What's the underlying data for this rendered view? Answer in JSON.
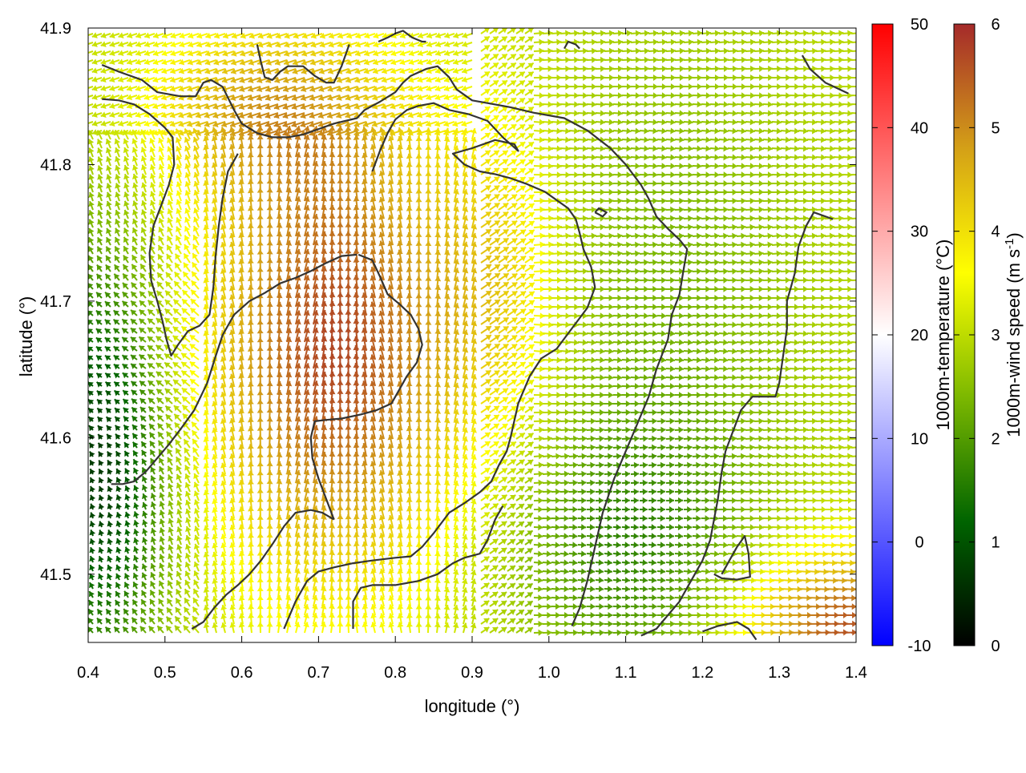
{
  "chart_data": {
    "type": "vector-field",
    "x": {
      "label": "longitude (°)",
      "range": [
        0.4,
        1.4
      ],
      "ticks": [
        "0.4",
        "0.5",
        "0.6",
        "0.7",
        "0.8",
        "0.9",
        "1.0",
        "1.1",
        "1.2",
        "1.3",
        "1.4"
      ]
    },
    "y": {
      "label": "latitude (°)",
      "range": [
        41.45,
        41.9
      ],
      "ticks": [
        "41.5",
        "41.6",
        "41.7",
        "41.8",
        "41.9"
      ]
    },
    "colorbars": [
      {
        "label": "1000m-temperature (°C)",
        "range": [
          -10,
          50
        ],
        "ticks": [
          "-10",
          "0",
          "10",
          "20",
          "30",
          "40",
          "50"
        ],
        "stops": [
          "#0000ff",
          "#ffffff",
          "#ff0000"
        ]
      },
      {
        "label": "1000m-wind speed (m s-1)",
        "label_main": "1000m-wind speed (m s",
        "label_sup": "-1",
        "label_tail": ")",
        "range": [
          0,
          6
        ],
        "ticks": [
          "0",
          "1",
          "2",
          "3",
          "4",
          "5",
          "6"
        ],
        "stops": [
          "#000000",
          "#006400",
          "#7cb800",
          "#ffff00",
          "#d4a017",
          "#a52a2a"
        ]
      }
    ],
    "contours": [
      [
        [
          0.418,
          41.873
        ],
        [
          0.44,
          41.868
        ],
        [
          0.47,
          41.862
        ],
        [
          0.49,
          41.853
        ],
        [
          0.52,
          41.85
        ],
        [
          0.54,
          41.85
        ],
        [
          0.55,
          41.86
        ],
        [
          0.56,
          41.862
        ],
        [
          0.575,
          41.857
        ],
        [
          0.59,
          41.84
        ],
        [
          0.6,
          41.83
        ],
        [
          0.62,
          41.823
        ],
        [
          0.64,
          41.82
        ],
        [
          0.66,
          41.82
        ],
        [
          0.68,
          41.822
        ],
        [
          0.7,
          41.826
        ],
        [
          0.72,
          41.83
        ],
        [
          0.75,
          41.834
        ],
        [
          0.76,
          41.84
        ],
        [
          0.78,
          41.846
        ],
        [
          0.8,
          41.853
        ],
        [
          0.81,
          41.86
        ],
        [
          0.82,
          41.865
        ],
        [
          0.84,
          41.87
        ],
        [
          0.855,
          41.872
        ],
        [
          0.87,
          41.864
        ],
        [
          0.88,
          41.855
        ],
        [
          0.9,
          41.847
        ],
        [
          0.92,
          41.845
        ],
        [
          0.95,
          41.842
        ],
        [
          0.98,
          41.838
        ],
        [
          1.02,
          41.834
        ],
        [
          1.05,
          41.825
        ],
        [
          1.08,
          41.812
        ],
        [
          1.1,
          41.8
        ],
        [
          1.12,
          41.785
        ],
        [
          1.13,
          41.775
        ],
        [
          1.14,
          41.762
        ],
        [
          1.155,
          41.753
        ],
        [
          1.17,
          41.745
        ],
        [
          1.18,
          41.738
        ],
        [
          1.175,
          41.722
        ],
        [
          1.17,
          41.705
        ],
        [
          1.16,
          41.69
        ],
        [
          1.155,
          41.672
        ],
        [
          1.14,
          41.65
        ],
        [
          1.13,
          41.63
        ],
        [
          1.115,
          41.61
        ],
        [
          1.1,
          41.59
        ],
        [
          1.085,
          41.57
        ],
        [
          1.07,
          41.545
        ],
        [
          1.06,
          41.52
        ],
        [
          1.05,
          41.495
        ],
        [
          1.04,
          41.475
        ],
        [
          1.03,
          41.462
        ]
      ],
      [
        [
          0.418,
          41.848
        ],
        [
          0.44,
          41.847
        ],
        [
          0.46,
          41.844
        ],
        [
          0.48,
          41.837
        ],
        [
          0.5,
          41.827
        ],
        [
          0.51,
          41.82
        ],
        [
          0.512,
          41.8
        ],
        [
          0.505,
          41.785
        ],
        [
          0.495,
          41.77
        ],
        [
          0.485,
          41.755
        ],
        [
          0.48,
          41.735
        ],
        [
          0.482,
          41.715
        ],
        [
          0.49,
          41.7
        ],
        [
          0.497,
          41.685
        ],
        [
          0.502,
          41.672
        ],
        [
          0.508,
          41.66
        ],
        [
          0.517,
          41.668
        ],
        [
          0.53,
          41.678
        ],
        [
          0.545,
          41.682
        ],
        [
          0.558,
          41.69
        ],
        [
          0.563,
          41.71
        ],
        [
          0.566,
          41.733
        ],
        [
          0.57,
          41.755
        ],
        [
          0.575,
          41.775
        ],
        [
          0.582,
          41.795
        ],
        [
          0.595,
          41.808
        ]
      ],
      [
        [
          0.62,
          41.888
        ],
        [
          0.625,
          41.875
        ],
        [
          0.63,
          41.864
        ],
        [
          0.64,
          41.862
        ],
        [
          0.65,
          41.868
        ],
        [
          0.66,
          41.872
        ],
        [
          0.68,
          41.872
        ],
        [
          0.695,
          41.865
        ],
        [
          0.71,
          41.86
        ],
        [
          0.72,
          41.86
        ],
        [
          0.73,
          41.872
        ],
        [
          0.74,
          41.888
        ]
      ],
      [
        [
          0.778,
          41.89
        ],
        [
          0.79,
          41.893
        ],
        [
          0.8,
          41.896
        ],
        [
          0.81,
          41.898
        ],
        [
          0.822,
          41.893
        ],
        [
          0.835,
          41.89
        ],
        [
          0.84,
          41.89
        ]
      ],
      [
        [
          0.75,
          41.734
        ],
        [
          0.73,
          41.733
        ],
        [
          0.71,
          41.728
        ],
        [
          0.69,
          41.722
        ],
        [
          0.67,
          41.717
        ],
        [
          0.65,
          41.713
        ],
        [
          0.63,
          41.706
        ],
        [
          0.61,
          41.7
        ],
        [
          0.59,
          41.69
        ],
        [
          0.575,
          41.675
        ],
        [
          0.565,
          41.658
        ],
        [
          0.555,
          41.64
        ],
        [
          0.538,
          41.62
        ],
        [
          0.52,
          41.606
        ],
        [
          0.505,
          41.595
        ],
        [
          0.49,
          41.585
        ],
        [
          0.475,
          41.575
        ],
        [
          0.46,
          41.568
        ],
        [
          0.445,
          41.566
        ],
        [
          0.43,
          41.566
        ]
      ],
      [
        [
          0.752,
          41.734
        ],
        [
          0.77,
          41.73
        ],
        [
          0.78,
          41.718
        ],
        [
          0.79,
          41.705
        ],
        [
          0.805,
          41.698
        ],
        [
          0.82,
          41.69
        ],
        [
          0.83,
          41.68
        ],
        [
          0.835,
          41.668
        ],
        [
          0.828,
          41.655
        ],
        [
          0.815,
          41.645
        ],
        [
          0.805,
          41.635
        ],
        [
          0.795,
          41.625
        ],
        [
          0.775,
          41.62
        ],
        [
          0.755,
          41.617
        ],
        [
          0.73,
          41.614
        ],
        [
          0.71,
          41.613
        ],
        [
          0.695,
          41.612
        ],
        [
          0.69,
          41.6
        ],
        [
          0.692,
          41.585
        ],
        [
          0.7,
          41.57
        ],
        [
          0.71,
          41.555
        ],
        [
          0.72,
          41.54
        ]
      ],
      [
        [
          0.72,
          41.54
        ],
        [
          0.705,
          41.545
        ],
        [
          0.69,
          41.547
        ],
        [
          0.67,
          41.545
        ],
        [
          0.655,
          41.535
        ],
        [
          0.64,
          41.522
        ],
        [
          0.625,
          41.51
        ],
        [
          0.61,
          41.5
        ],
        [
          0.595,
          41.492
        ],
        [
          0.58,
          41.485
        ],
        [
          0.565,
          41.476
        ],
        [
          0.55,
          41.465
        ],
        [
          0.535,
          41.46
        ]
      ],
      [
        [
          0.655,
          41.46
        ],
        [
          0.67,
          41.48
        ],
        [
          0.685,
          41.495
        ],
        [
          0.7,
          41.502
        ],
        [
          0.72,
          41.505
        ],
        [
          0.745,
          41.508
        ],
        [
          0.77,
          41.51
        ],
        [
          0.8,
          41.512
        ],
        [
          0.82,
          41.513
        ],
        [
          0.835,
          41.52
        ],
        [
          0.85,
          41.53
        ],
        [
          0.87,
          41.545
        ],
        [
          0.89,
          41.552
        ],
        [
          0.91,
          41.56
        ],
        [
          0.925,
          41.568
        ],
        [
          0.935,
          41.58
        ],
        [
          0.945,
          41.59
        ],
        [
          0.95,
          41.6
        ],
        [
          0.96,
          41.625
        ],
        [
          0.975,
          41.645
        ],
        [
          0.99,
          41.658
        ],
        [
          1.01,
          41.665
        ],
        [
          1.03,
          41.68
        ],
        [
          1.05,
          41.695
        ],
        [
          1.06,
          41.71
        ],
        [
          1.055,
          41.725
        ],
        [
          1.045,
          41.738
        ],
        [
          1.04,
          41.75
        ],
        [
          1.035,
          41.76
        ],
        [
          1.025,
          41.768
        ],
        [
          1.01,
          41.774
        ],
        [
          0.995,
          41.78
        ],
        [
          0.97,
          41.786
        ],
        [
          0.95,
          41.79
        ],
        [
          0.93,
          41.793
        ],
        [
          0.91,
          41.795
        ],
        [
          0.89,
          41.8
        ],
        [
          0.875,
          41.808
        ],
        [
          0.9,
          41.812
        ],
        [
          0.93,
          41.818
        ],
        [
          0.955,
          41.815
        ],
        [
          0.96,
          41.81
        ],
        [
          0.94,
          41.82
        ],
        [
          0.92,
          41.832
        ],
        [
          0.895,
          41.837
        ],
        [
          0.87,
          41.84
        ],
        [
          0.85,
          41.845
        ],
        [
          0.83,
          41.843
        ],
        [
          0.815,
          41.84
        ],
        [
          0.8,
          41.833
        ],
        [
          0.79,
          41.823
        ],
        [
          0.78,
          41.81
        ],
        [
          0.77,
          41.795
        ]
      ],
      [
        [
          0.745,
          41.46
        ],
        [
          0.745,
          41.48
        ],
        [
          0.755,
          41.49
        ],
        [
          0.77,
          41.492
        ],
        [
          0.8,
          41.492
        ],
        [
          0.83,
          41.495
        ],
        [
          0.855,
          41.5
        ],
        [
          0.875,
          41.508
        ],
        [
          0.89,
          41.512
        ],
        [
          0.91,
          41.515
        ],
        [
          0.92,
          41.525
        ],
        [
          0.93,
          41.54
        ],
        [
          0.94,
          41.55
        ]
      ],
      [
        [
          1.37,
          41.76
        ],
        [
          1.345,
          41.765
        ],
        [
          1.335,
          41.755
        ],
        [
          1.325,
          41.74
        ],
        [
          1.32,
          41.72
        ],
        [
          1.31,
          41.7
        ],
        [
          1.31,
          41.68
        ],
        [
          1.305,
          41.66
        ],
        [
          1.3,
          41.64
        ],
        [
          1.295,
          41.63
        ],
        [
          1.28,
          41.63
        ],
        [
          1.265,
          41.63
        ],
        [
          1.25,
          41.62
        ],
        [
          1.24,
          41.605
        ],
        [
          1.23,
          41.59
        ],
        [
          1.225,
          41.575
        ],
        [
          1.22,
          41.555
        ],
        [
          1.215,
          41.54
        ],
        [
          1.21,
          41.525
        ],
        [
          1.2,
          41.51
        ],
        [
          1.19,
          41.5
        ],
        [
          1.18,
          41.49
        ],
        [
          1.17,
          41.48
        ],
        [
          1.155,
          41.47
        ],
        [
          1.14,
          41.46
        ],
        [
          1.12,
          41.455
        ]
      ],
      [
        [
          1.2,
          41.458
        ],
        [
          1.22,
          41.462
        ],
        [
          1.245,
          41.465
        ],
        [
          1.26,
          41.46
        ],
        [
          1.27,
          41.452
        ]
      ],
      [
        [
          1.225,
          41.5
        ],
        [
          1.245,
          41.52
        ],
        [
          1.255,
          41.528
        ],
        [
          1.26,
          41.515
        ],
        [
          1.262,
          41.498
        ],
        [
          1.245,
          41.496
        ],
        [
          1.225,
          41.497
        ],
        [
          1.215,
          41.5
        ]
      ],
      [
        [
          1.04,
          41.885
        ],
        [
          1.035,
          41.888
        ],
        [
          1.025,
          41.89
        ],
        [
          1.02,
          41.885
        ]
      ],
      [
        [
          1.33,
          41.88
        ],
        [
          1.34,
          41.87
        ],
        [
          1.36,
          41.86
        ],
        [
          1.375,
          41.856
        ],
        [
          1.39,
          41.852
        ]
      ],
      [
        [
          1.06,
          41.765
        ],
        [
          1.07,
          41.762
        ],
        [
          1.075,
          41.765
        ],
        [
          1.065,
          41.768
        ],
        [
          1.06,
          41.765
        ]
      ]
    ]
  }
}
